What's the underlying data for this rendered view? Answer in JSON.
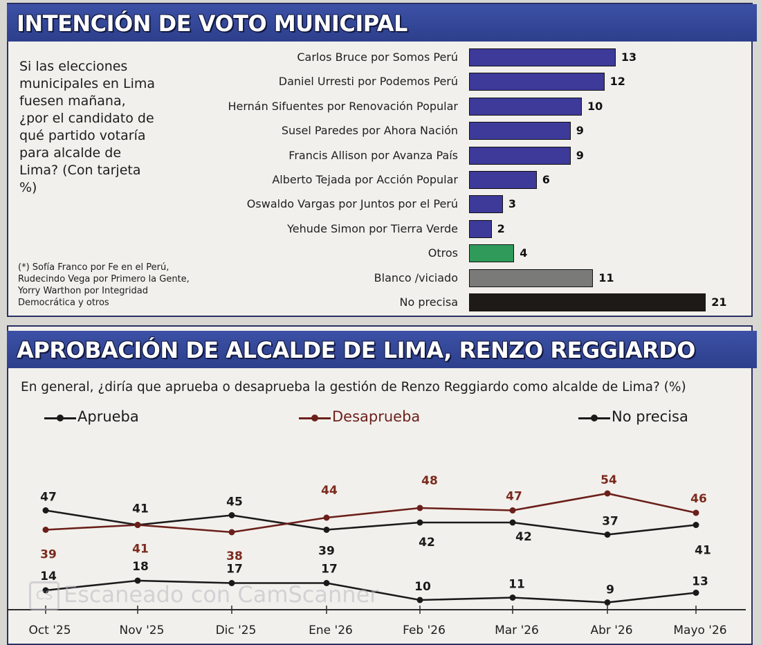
{
  "top_chart": {
    "title": "INTENCIÓN DE VOTO MUNICIPAL",
    "question": "Si las elecciones municipales en Lima fuesen mañana, ¿por el candidato de qué partido votaría para alcalde de Lima? (Con tarjeta %)",
    "footnote": "(*) Sofía Franco por Fe en el Perú, Rudecindo Vega por Primero la Gente, Yorry Warthon por Integridad Democrática y otros"
  },
  "bottom_chart": {
    "title": "APROBACIÓN DE ALCALDE DE LIMA, RENZO REGGIARDO",
    "question": "En general, ¿diría que aprueba o desaprueba la gestión de Renzo Reggiardo como alcalde de Lima? (%)",
    "legend": [
      "Aprueba",
      "Desaprueba",
      "No precisa"
    ]
  },
  "watermark": "Escaneado con CamScanner",
  "chart_data": [
    {
      "type": "bar",
      "title": "INTENCIÓN DE VOTO MUNICIPAL",
      "categories": [
        "Carlos Bruce por Somos Perú",
        "Daniel Urresti por Podemos Perú",
        "Hernán Sifuentes por Renovación Popular",
        "Susel Paredes por Ahora Nación",
        "Francis Allison por Avanza País",
        "Alberto Tejada por Acción Popular",
        "Oswaldo Vargas por Juntos por el Perú",
        "Yehude Simon por Tierra Verde",
        "Otros",
        "Blanco /viciado",
        "No precisa"
      ],
      "values": [
        13,
        12,
        10,
        9,
        9,
        6,
        3,
        2,
        4,
        11,
        21
      ],
      "colors": [
        "#3d3a9a",
        "#3d3a9a",
        "#3d3a9a",
        "#3d3a9a",
        "#3d3a9a",
        "#3d3a9a",
        "#3d3a9a",
        "#3d3a9a",
        "#2f9a5a",
        "#7a7a78",
        "#1e1a18"
      ],
      "orientation": "horizontal"
    },
    {
      "type": "line",
      "title": "APROBACIÓN DE ALCALDE DE LIMA, RENZO REGGIARDO",
      "categories": [
        "Oct '25",
        "Nov '25",
        "Dic '25",
        "Ene '26",
        "Feb '26",
        "Mar '26",
        "Abr '26",
        "Mayo '26"
      ],
      "series": [
        {
          "name": "Aprueba",
          "values": [
            47,
            41,
            45,
            39,
            42,
            42,
            37,
            41
          ],
          "color": "#1a1a1a"
        },
        {
          "name": "Desaprueba",
          "values": [
            39,
            41,
            38,
            44,
            48,
            47,
            54,
            46
          ],
          "color": "#6b1f1a"
        },
        {
          "name": "No precisa",
          "values": [
            14,
            18,
            17,
            17,
            10,
            11,
            9,
            13
          ],
          "color": "#1a1a1a"
        }
      ],
      "label_colors": {
        "Aprueba": "#1a1a1a",
        "Desaprueba": "#7a2a1e",
        "No precisa": "#1a1a1a"
      }
    }
  ]
}
